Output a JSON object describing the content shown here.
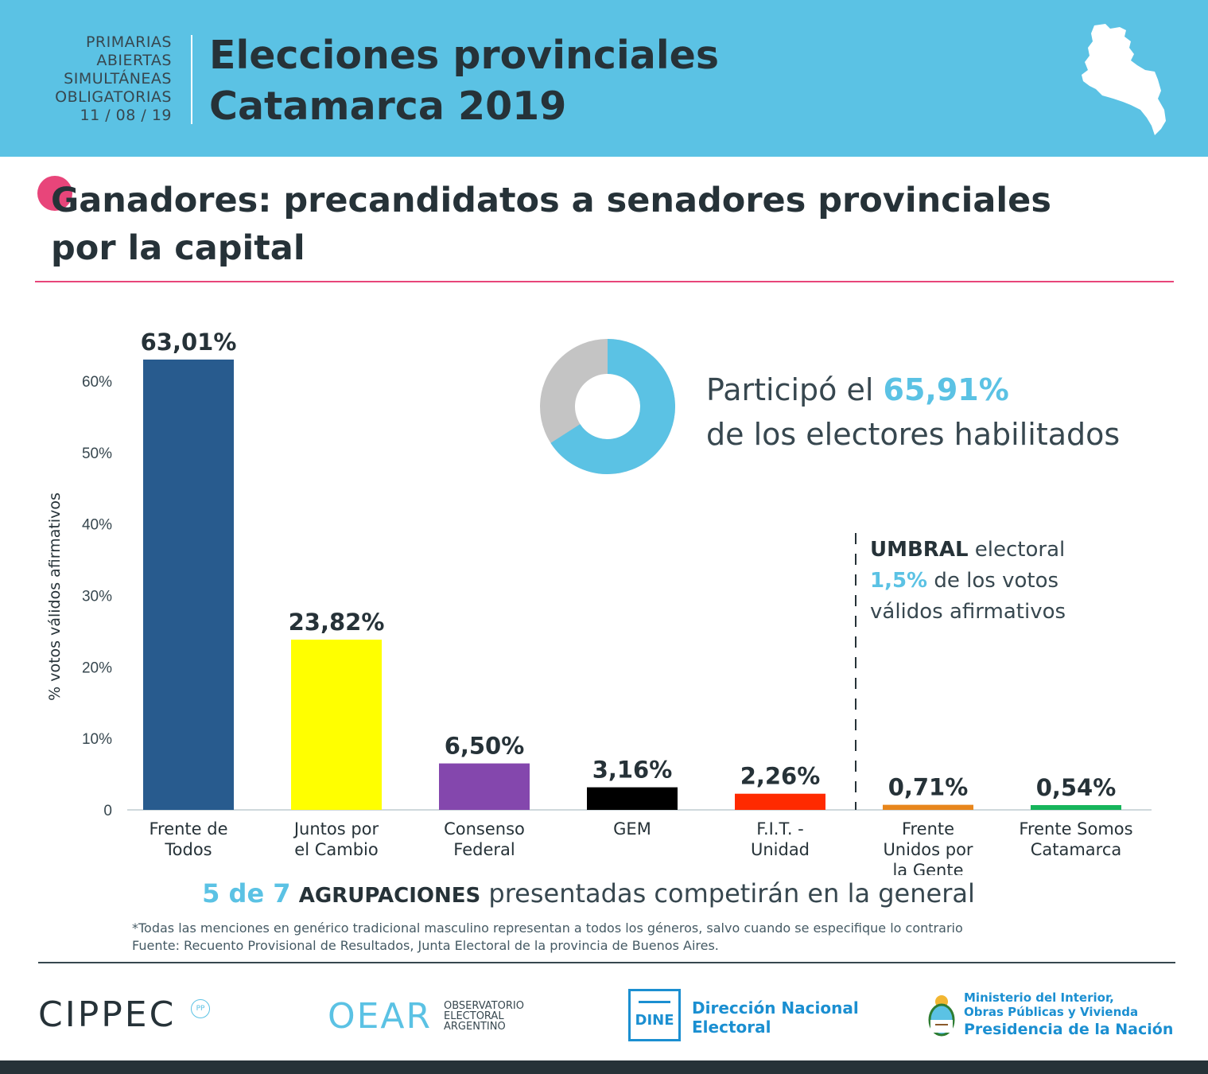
{
  "header": {
    "paso_lines": [
      "PRIMARIAS",
      "ABIERTAS",
      "SIMULTÁNEAS",
      "OBLIGATORIAS",
      "11 / 08 / 19"
    ],
    "title_line1": "Elecciones provinciales",
    "title_line2": "Catamarca 2019",
    "map_icon": "catamarca-map-icon"
  },
  "section": {
    "title_line1": "Ganadores: precandidatos a senadores provinciales",
    "title_line2": "por la capital"
  },
  "participation": {
    "prefix": "Participó el",
    "value_label": "65,91%",
    "value": 65.91,
    "line2": "de los electores habilitados"
  },
  "threshold": {
    "word1": "UMBRAL",
    "word2": " electoral",
    "value_label": "1,5%",
    "value": 1.5,
    "rest1": " de los votos",
    "line3": "válidos afirmativos"
  },
  "chart_data": {
    "type": "bar",
    "title": "Ganadores: precandidatos a senadores provinciales por la capital",
    "ylabel": "% votos válidos afirmativos",
    "xlabel": "",
    "ylim": [
      0,
      60
    ],
    "y_ticks": [
      0,
      10,
      20,
      30,
      40,
      50,
      60
    ],
    "y_tick_labels": [
      "0",
      "10%",
      "20%",
      "30%",
      "40%",
      "50%",
      "60%"
    ],
    "categories": [
      [
        "Frente de",
        "Todos"
      ],
      [
        "Juntos por",
        "el Cambio"
      ],
      [
        "Consenso",
        "Federal"
      ],
      [
        "GEM"
      ],
      [
        "F.I.T. -",
        "Unidad"
      ],
      [
        "Frente",
        "Unidos por",
        "la Gente"
      ],
      [
        "Frente Somos",
        "Catamarca"
      ]
    ],
    "values": [
      63.01,
      23.82,
      6.5,
      3.16,
      2.26,
      0.71,
      0.54
    ],
    "value_labels": [
      "63,01%",
      "23,82%",
      "6,50%",
      "3,16%",
      "2,26%",
      "0,71%",
      "0,54%"
    ],
    "colors": [
      "#285b8e",
      "#ffff00",
      "#8447ad",
      "#000000",
      "#ff2a00",
      "#e8861c",
      "#16b55b"
    ],
    "threshold_line": "between GEM-side group and Frente Unidos por la Gente",
    "grid": false
  },
  "summary": {
    "num": "5 de 7",
    "grp": "AGRUPACIONES",
    "rest": "presentadas competirán en la general"
  },
  "notes": {
    "line1": "*Todas las menciones en genérico tradicional masculino representan a todos los géneros, salvo cuando se especifique lo contrario",
    "line2": "Fuente: Recuento Provisional de Resultados, Junta Electoral de la provincia de Buenos Aires."
  },
  "logos": {
    "cippec": "CIPPEC",
    "cippec_badge": "PP",
    "oear": "OEAR",
    "oear_sub": [
      "OBSERVATORIO",
      "ELECTORAL",
      "ARGENTINO"
    ],
    "dine": "DINE",
    "dine_name1": "Dirección Nacional",
    "dine_name2": "Electoral",
    "min_line1": "Ministerio del Interior,",
    "min_line2": "Obras Públicas y Vivienda",
    "min_line3": "Presidencia de la Nación"
  },
  "colors": {
    "accent_blue": "#5bc2e4",
    "pink": "#e8457a",
    "dark": "#263238",
    "donut_gray": "#c4c4c4"
  }
}
